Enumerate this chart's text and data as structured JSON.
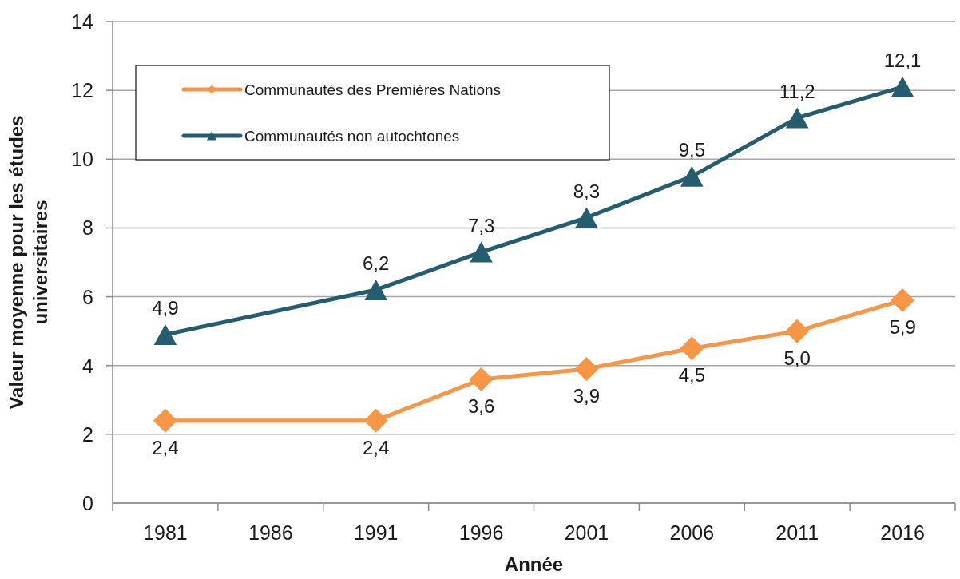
{
  "chart_data": {
    "type": "line",
    "xlabel": "Année",
    "ylabel": "Valeur moyenne pour les études universitaires",
    "x": [
      1981,
      1991,
      1996,
      2001,
      2006,
      2011,
      2016
    ],
    "xlim": [
      1978.5,
      2018.5
    ],
    "xticks": [
      {
        "value": 1978.5,
        "label": null
      },
      1981,
      {
        "value": 1983.5,
        "label": null
      },
      1986,
      {
        "value": 1988.5,
        "label": null
      },
      1991,
      {
        "value": 1993.5,
        "label": null
      },
      1996,
      {
        "value": 1998.5,
        "label": null
      },
      2001,
      {
        "value": 2003.5,
        "label": null
      },
      2006,
      {
        "value": 2008.5,
        "label": null
      },
      2011,
      {
        "value": 2013.5,
        "label": null
      },
      2016,
      {
        "value": 2018.5,
        "label": null
      }
    ],
    "ylim": [
      0,
      14
    ],
    "yticks": [
      0,
      2,
      4,
      6,
      8,
      10,
      12,
      14
    ],
    "grid": "y",
    "legend": "top left",
    "series": [
      {
        "name": "Communautés des Premières Nations",
        "color": "#f79646",
        "marker": "diamond",
        "values": [
          2.4,
          2.4,
          3.6,
          3.9,
          4.5,
          5.0,
          5.9
        ],
        "value_labels": [
          "2,4",
          "2,4",
          "3,6",
          "3,9",
          "4,5",
          "5,0",
          "5,9"
        ]
      },
      {
        "name": "Communautés non autochtones",
        "color": "#245d6d",
        "marker": "triangle",
        "values": [
          4.9,
          6.2,
          7.3,
          8.3,
          9.5,
          11.2,
          12.1
        ],
        "value_labels": [
          "4,9",
          "6,2",
          "7,3",
          "8,3",
          "9,5",
          "11,2",
          "12,1"
        ]
      }
    ]
  }
}
